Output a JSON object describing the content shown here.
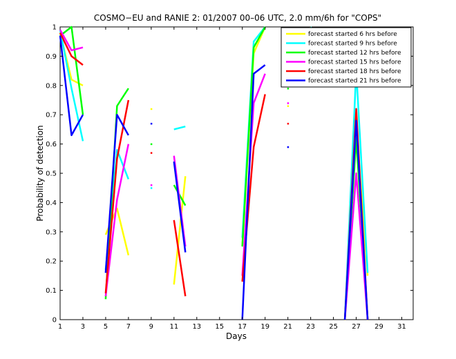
{
  "chart_data": {
    "type": "line",
    "title": "COSMO−EU and RANIE 2: 01/2007 00–06 UTC, 2.0 mm/6h for \"COPS\"",
    "xlabel": "Days",
    "ylabel": "Probability of detection",
    "xlim": [
      1,
      32
    ],
    "ylim": [
      0,
      1
    ],
    "xticks": [
      1,
      3,
      5,
      7,
      9,
      11,
      13,
      15,
      17,
      19,
      21,
      23,
      25,
      27,
      29,
      31
    ],
    "yticks": [
      0,
      0.1,
      0.2,
      0.3,
      0.4,
      0.5,
      0.6,
      0.7,
      0.8,
      0.9,
      1
    ],
    "ytick_labels": [
      "0",
      "0.1",
      "0.2",
      "0.3",
      "0.4",
      "0.5",
      "0.6",
      "0.7",
      "0.8",
      "0.9",
      "1"
    ],
    "grid": false,
    "legend_position": "top-right",
    "series": [
      {
        "name": "forecast started 6 hrs before",
        "color": "#ffff00",
        "segments": [
          [
            [
              1,
              0.98
            ],
            [
              2,
              0.82
            ],
            [
              3,
              0.8
            ]
          ],
          [
            [
              5,
              0.29
            ],
            [
              6,
              0.38
            ],
            [
              7,
              0.22
            ]
          ],
          [
            [
              11,
              0.12
            ],
            [
              12,
              0.49
            ]
          ],
          [
            [
              17,
              0.25
            ],
            [
              18,
              0.91
            ],
            [
              19,
              1.0
            ]
          ],
          [
            [
              23,
              1.0
            ],
            [
              24,
              0.88
            ]
          ],
          [
            [
              26,
              0.0
            ],
            [
              27,
              0.66
            ],
            [
              28,
              0.15
            ]
          ]
        ],
        "points": [
          [
            9,
            0.72
          ],
          [
            21,
            0.73
          ]
        ]
      },
      {
        "name": "forecast started 9 hrs before",
        "color": "#00ffff",
        "segments": [
          [
            [
              1,
              0.99
            ],
            [
              2,
              0.79
            ],
            [
              3,
              0.61
            ]
          ],
          [
            [
              5,
              0.17
            ],
            [
              6,
              0.58
            ],
            [
              7,
              0.48
            ]
          ],
          [
            [
              11,
              0.65
            ],
            [
              12,
              0.66
            ]
          ],
          [
            [
              17,
              0.28
            ],
            [
              18,
              0.95
            ],
            [
              19,
              1.0
            ]
          ],
          [
            [
              23,
              1.0
            ],
            [
              24,
              0.9
            ]
          ],
          [
            [
              26,
              0.0
            ],
            [
              27,
              0.85
            ],
            [
              28,
              0.16
            ]
          ]
        ],
        "points": [
          [
            9,
            0.45
          ],
          [
            21,
            0.83
          ]
        ]
      },
      {
        "name": "forecast started 12 hrs before",
        "color": "#00ff00",
        "segments": [
          [
            [
              1,
              0.97
            ],
            [
              2,
              1.0
            ],
            [
              3,
              0.7
            ]
          ],
          [
            [
              5,
              0.07
            ],
            [
              6,
              0.73
            ],
            [
              7,
              0.79
            ]
          ],
          [
            [
              11,
              0.46
            ],
            [
              12,
              0.39
            ]
          ],
          [
            [
              17,
              0.25
            ],
            [
              18,
              0.93
            ],
            [
              19,
              1.0
            ]
          ],
          [
            [
              26,
              0.0
            ],
            [
              27,
              0.62
            ],
            [
              28,
              0.0
            ]
          ]
        ],
        "points": [
          [
            9,
            0.6
          ],
          [
            21,
            0.79
          ]
        ]
      },
      {
        "name": "forecast started 15 hrs before",
        "color": "#ff00ff",
        "segments": [
          [
            [
              1,
              0.99
            ],
            [
              2,
              0.92
            ],
            [
              3,
              0.93
            ]
          ],
          [
            [
              5,
              0.08
            ],
            [
              6,
              0.41
            ],
            [
              7,
              0.6
            ]
          ],
          [
            [
              11,
              0.56
            ],
            [
              12,
              0.25
            ]
          ],
          [
            [
              17,
              0.15
            ],
            [
              18,
              0.74
            ],
            [
              19,
              0.84
            ]
          ],
          [
            [
              26,
              0.0
            ],
            [
              27,
              0.5
            ],
            [
              28,
              0.0
            ]
          ]
        ],
        "points": [
          [
            9,
            0.46
          ],
          [
            21,
            0.74
          ]
        ]
      },
      {
        "name": "forecast started 18 hrs before",
        "color": "#ff0000",
        "segments": [
          [
            [
              1,
              0.98
            ],
            [
              2,
              0.9
            ],
            [
              3,
              0.87
            ]
          ],
          [
            [
              5,
              0.09
            ],
            [
              6,
              0.55
            ],
            [
              7,
              0.75
            ]
          ],
          [
            [
              11,
              0.34
            ],
            [
              12,
              0.08
            ]
          ],
          [
            [
              17,
              0.13
            ],
            [
              18,
              0.59
            ],
            [
              19,
              0.77
            ]
          ],
          [
            [
              26,
              0.0
            ],
            [
              27,
              0.72
            ],
            [
              28,
              0.0
            ]
          ]
        ],
        "points": [
          [
            9,
            0.57
          ],
          [
            21,
            0.67
          ]
        ]
      },
      {
        "name": "forecast started 21 hrs before",
        "color": "#0000ff",
        "segments": [
          [
            [
              1,
              0.97
            ],
            [
              2,
              0.63
            ],
            [
              3,
              0.7
            ]
          ],
          [
            [
              5,
              0.16
            ],
            [
              6,
              0.7
            ],
            [
              7,
              0.63
            ]
          ],
          [
            [
              11,
              0.54
            ],
            [
              12,
              0.23
            ]
          ],
          [
            [
              17,
              0.0
            ],
            [
              18,
              0.84
            ],
            [
              19,
              0.87
            ]
          ],
          [
            [
              26,
              0.0
            ],
            [
              27,
              0.68
            ],
            [
              28,
              0.0
            ]
          ]
        ],
        "points": [
          [
            9,
            0.67
          ],
          [
            21,
            0.59
          ]
        ]
      }
    ]
  }
}
